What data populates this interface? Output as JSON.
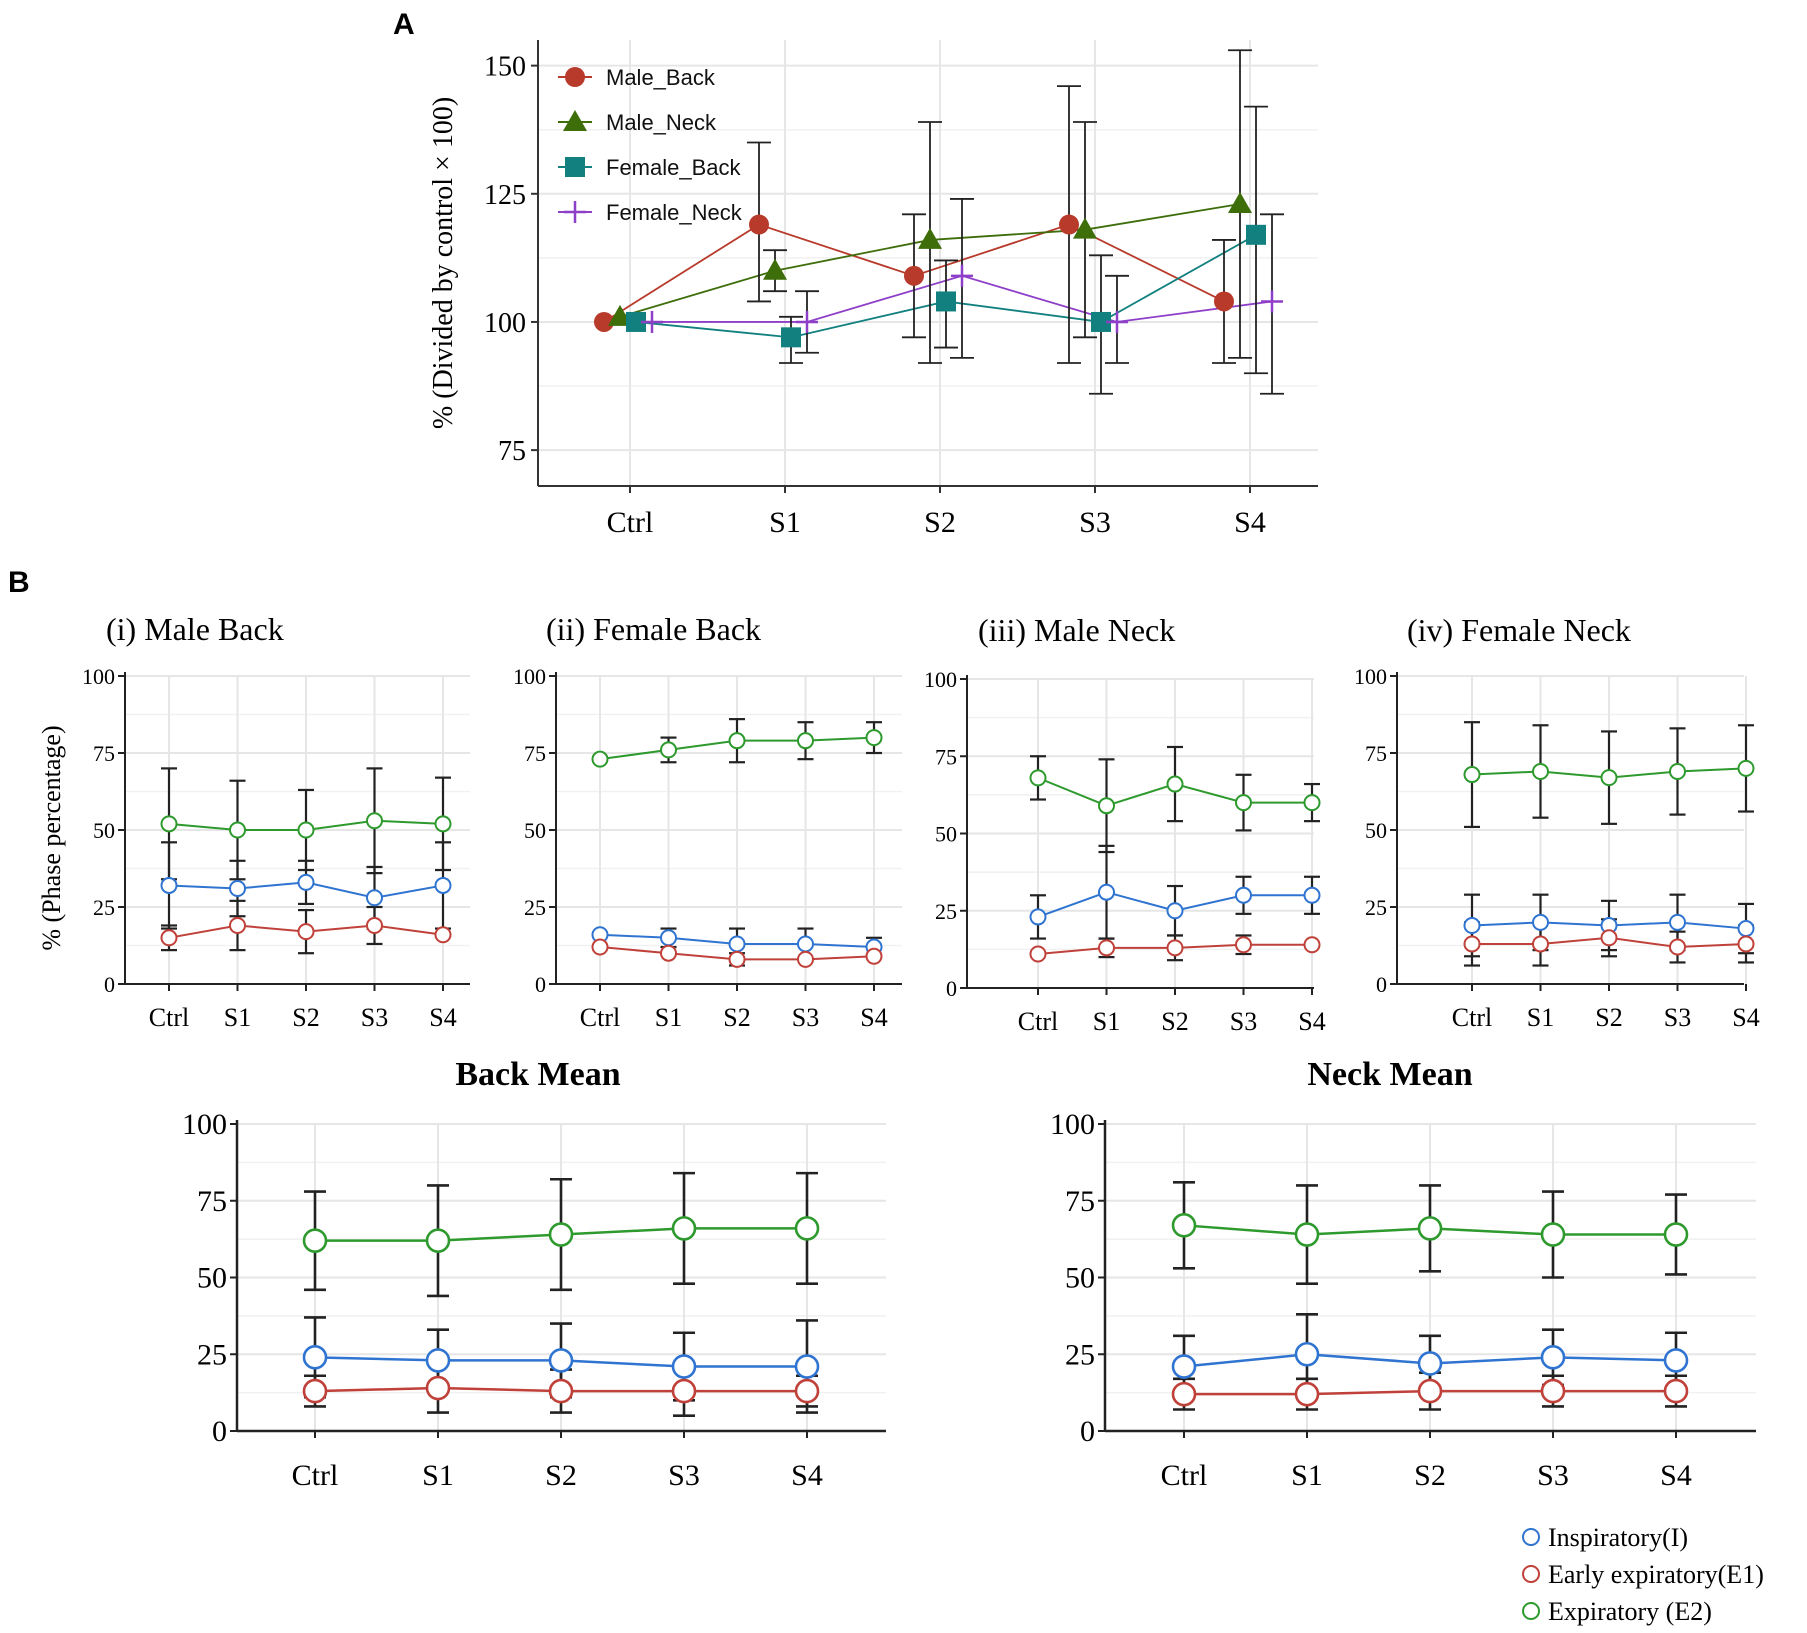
{
  "figure": {
    "panel_a_label": "A",
    "panel_b_label": "B"
  },
  "colors": {
    "male_back": "#b83a2b",
    "male_neck": "#3d6e0a",
    "female_back": "#138080",
    "female_neck": "#8e3fc8",
    "inspiratory": "#2f74d0",
    "early_expiratory": "#c0413a",
    "expiratory": "#2e9a2e",
    "grid": "#e6e6e6",
    "errorbar": "#222222"
  },
  "chart_data": [
    {
      "id": "A",
      "type": "line",
      "title": "",
      "xlabel": "",
      "ylabel": "% (Divided by control × 100)",
      "categories": [
        "Ctrl",
        "S1",
        "S2",
        "S3",
        "S4"
      ],
      "ylim": [
        68,
        155
      ],
      "yticks": [
        75,
        100,
        125,
        150
      ],
      "legend": "top-left",
      "series": [
        {
          "name": "Male_Back",
          "marker": "circle",
          "colorKey": "male_back",
          "values": [
            100,
            119,
            109,
            119,
            104
          ],
          "err_low": [
            null,
            104,
            97,
            92,
            92
          ],
          "err_high": [
            null,
            135,
            121,
            146,
            116
          ]
        },
        {
          "name": "Male_Neck",
          "marker": "triangle",
          "colorKey": "male_neck",
          "values": [
            101,
            110,
            116,
            118,
            123
          ],
          "err_low": [
            null,
            106,
            92,
            97,
            93
          ],
          "err_high": [
            null,
            114,
            139,
            139,
            153
          ]
        },
        {
          "name": "Female_Back",
          "marker": "square",
          "colorKey": "female_back",
          "values": [
            100,
            97,
            104,
            100,
            117
          ],
          "err_low": [
            null,
            92,
            95,
            86,
            90
          ],
          "err_high": [
            null,
            101,
            112,
            113,
            142
          ]
        },
        {
          "name": "Female_Neck",
          "marker": "plus",
          "colorKey": "female_neck",
          "values": [
            100,
            100,
            109,
            100,
            104
          ],
          "err_low": [
            null,
            94,
            93,
            92,
            86
          ],
          "err_high": [
            null,
            106,
            124,
            109,
            121
          ]
        }
      ]
    },
    {
      "id": "Bi",
      "type": "line",
      "title": "(i) Male Back",
      "ylabel": "% (Phase percentage)",
      "categories": [
        "Ctrl",
        "S1",
        "S2",
        "S3",
        "S4"
      ],
      "ylim": [
        0,
        100
      ],
      "yticks": [
        0,
        25,
        50,
        75,
        100
      ],
      "series": [
        {
          "name": "Inspiratory(I)",
          "colorKey": "inspiratory",
          "values": [
            32,
            31,
            33,
            28,
            32
          ],
          "err": [
            14,
            9,
            7,
            10,
            14
          ]
        },
        {
          "name": "Early expiratory(E1)",
          "colorKey": "early_expiratory",
          "values": [
            15,
            19,
            17,
            19,
            16
          ],
          "err": [
            4,
            8,
            7,
            6,
            0
          ]
        },
        {
          "name": "Expiratory (E2)",
          "colorKey": "expiratory",
          "values": [
            52,
            50,
            50,
            53,
            52
          ],
          "err": [
            18,
            16,
            13,
            17,
            15
          ]
        }
      ]
    },
    {
      "id": "Bii",
      "type": "line",
      "title": "(ii) Female Back",
      "categories": [
        "Ctrl",
        "S1",
        "S2",
        "S3",
        "S4"
      ],
      "ylim": [
        0,
        100
      ],
      "yticks": [
        0,
        25,
        50,
        75,
        100
      ],
      "series": [
        {
          "name": "Inspiratory(I)",
          "colorKey": "inspiratory",
          "values": [
            16,
            15,
            13,
            13,
            12
          ],
          "err": [
            0,
            3,
            5,
            5,
            3
          ]
        },
        {
          "name": "Early expiratory(E1)",
          "colorKey": "early_expiratory",
          "values": [
            12,
            10,
            8,
            8,
            9
          ],
          "err": [
            0,
            0,
            2,
            0,
            0
          ]
        },
        {
          "name": "Expiratory (E2)",
          "colorKey": "expiratory",
          "values": [
            73,
            76,
            79,
            79,
            80
          ],
          "err": [
            0,
            4,
            7,
            6,
            5
          ]
        }
      ]
    },
    {
      "id": "Biii",
      "type": "line",
      "title": "(iii) Male Neck",
      "categories": [
        "Ctrl",
        "S1",
        "S2",
        "S3",
        "S4"
      ],
      "ylim": [
        0,
        100
      ],
      "yticks": [
        0,
        25,
        50,
        75,
        100
      ],
      "series": [
        {
          "name": "Inspiratory(I)",
          "colorKey": "inspiratory",
          "values": [
            23,
            31,
            25,
            30,
            30
          ],
          "err": [
            7,
            15,
            8,
            6,
            6
          ]
        },
        {
          "name": "Early expiratory(E1)",
          "colorKey": "early_expiratory",
          "values": [
            11,
            13,
            13,
            14,
            14
          ],
          "err": [
            0,
            3,
            4,
            3,
            0
          ]
        },
        {
          "name": "Expiratory (E2)",
          "colorKey": "expiratory",
          "values": [
            68,
            59,
            66,
            60,
            60
          ],
          "err": [
            7,
            15,
            12,
            9,
            6
          ]
        }
      ]
    },
    {
      "id": "Biv",
      "type": "line",
      "title": "(iv) Female Neck",
      "categories": [
        "Ctrl",
        "S1",
        "S2",
        "S3",
        "S4"
      ],
      "ylim": [
        0,
        100
      ],
      "yticks": [
        0,
        25,
        50,
        75,
        100
      ],
      "series": [
        {
          "name": "Inspiratory(I)",
          "colorKey": "inspiratory",
          "values": [
            19,
            20,
            19,
            20,
            18
          ],
          "err": [
            10,
            9,
            8,
            9,
            8
          ]
        },
        {
          "name": "Early expiratory(E1)",
          "colorKey": "early_expiratory",
          "values": [
            13,
            13,
            15,
            12,
            13
          ],
          "err": [
            7,
            7,
            6,
            5,
            6
          ]
        },
        {
          "name": "Expiratory (E2)",
          "colorKey": "expiratory",
          "values": [
            68,
            69,
            67,
            69,
            70
          ],
          "err": [
            17,
            15,
            15,
            14,
            14
          ]
        }
      ]
    },
    {
      "id": "BackMean",
      "type": "line",
      "title": "Back Mean",
      "categories": [
        "Ctrl",
        "S1",
        "S2",
        "S3",
        "S4"
      ],
      "ylim": [
        0,
        100
      ],
      "yticks": [
        0,
        25,
        50,
        75,
        100
      ],
      "series": [
        {
          "name": "Inspiratory(I)",
          "colorKey": "inspiratory",
          "values": [
            24,
            23,
            23,
            21,
            21
          ],
          "err": [
            13,
            10,
            12,
            11,
            15
          ]
        },
        {
          "name": "Early expiratory(E1)",
          "colorKey": "early_expiratory",
          "values": [
            13,
            14,
            13,
            13,
            13
          ],
          "err": [
            5,
            8,
            7,
            8,
            5
          ]
        },
        {
          "name": "Expiratory (E2)",
          "colorKey": "expiratory",
          "values": [
            62,
            62,
            64,
            66,
            66
          ],
          "err": [
            16,
            18,
            18,
            18,
            18
          ]
        }
      ]
    },
    {
      "id": "NeckMean",
      "type": "line",
      "title": "Neck Mean",
      "categories": [
        "Ctrl",
        "S1",
        "S2",
        "S3",
        "S4"
      ],
      "ylim": [
        0,
        100
      ],
      "yticks": [
        0,
        25,
        50,
        75,
        100
      ],
      "series": [
        {
          "name": "Inspiratory(I)",
          "colorKey": "inspiratory",
          "values": [
            21,
            25,
            22,
            24,
            23
          ],
          "err": [
            10,
            13,
            9,
            9,
            9
          ]
        },
        {
          "name": "Early expiratory(E1)",
          "colorKey": "early_expiratory",
          "values": [
            12,
            12,
            13,
            13,
            13
          ],
          "err": [
            5,
            5,
            6,
            5,
            5
          ]
        },
        {
          "name": "Expiratory (E2)",
          "colorKey": "expiratory",
          "values": [
            67,
            64,
            66,
            64,
            64
          ],
          "err": [
            14,
            16,
            14,
            14,
            13
          ]
        }
      ]
    }
  ],
  "legend_b": [
    {
      "label": "Inspiratory(I)",
      "colorKey": "inspiratory"
    },
    {
      "label": "Early expiratory(E1)",
      "colorKey": "early_expiratory"
    },
    {
      "label": "Expiratory (E2)",
      "colorKey": "expiratory"
    }
  ]
}
